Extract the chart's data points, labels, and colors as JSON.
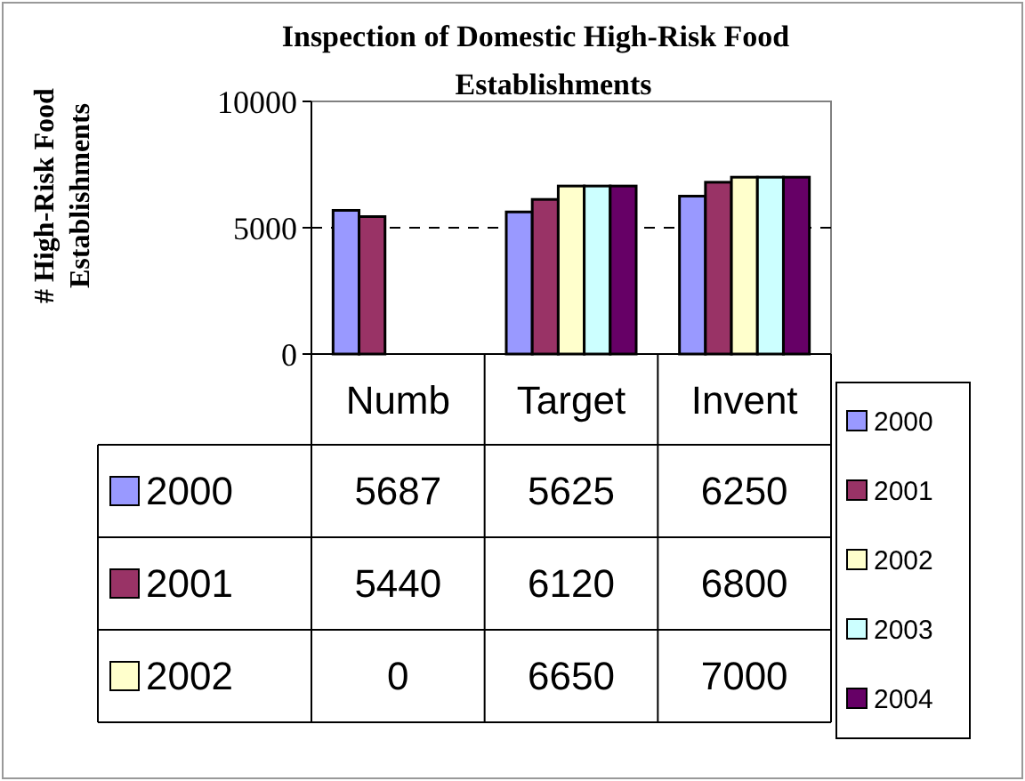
{
  "chart_data": {
    "type": "bar",
    "title": "Inspection of Domestic High-Risk Food\nEstablishments",
    "ylabel": "# High-Risk Food\nEstablishments",
    "categories": [
      "Numb",
      "Target",
      "Invent"
    ],
    "series": [
      {
        "name": "2000",
        "color": "#9999ff",
        "values": [
          5687,
          5625,
          6250
        ],
        "value_labels": [
          "5687",
          "5625",
          "6250"
        ]
      },
      {
        "name": "2001",
        "color": "#993366",
        "values": [
          5440,
          6120,
          6800
        ],
        "value_labels": [
          "5440",
          "6120",
          "6800"
        ]
      },
      {
        "name": "2002",
        "color": "#ffffcc",
        "values": [
          0,
          6650,
          7000
        ],
        "value_labels": [
          "0",
          "6650",
          "7000"
        ]
      },
      {
        "name": "2003",
        "color": "#ccffff",
        "values": [
          0,
          6650,
          7000
        ]
      },
      {
        "name": "2004",
        "color": "#660066",
        "values": [
          0,
          6650,
          7000
        ]
      }
    ],
    "ylim": [
      0,
      10000
    ],
    "yticks": [
      0,
      5000,
      10000
    ],
    "grid": "y",
    "legend": "bottom"
  }
}
